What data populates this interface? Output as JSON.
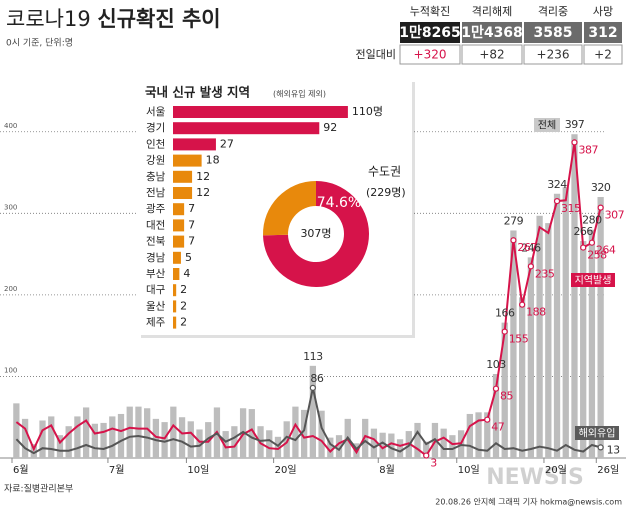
{
  "header": {
    "title_light": "코로나19",
    "title_bold": "신규확진 추이",
    "subtitle": "0시 기준, 단위:명"
  },
  "stats": {
    "headers": [
      "누적확진",
      "격리해제",
      "격리중",
      "사망"
    ],
    "values": [
      "1만8265",
      "1만4368",
      "3585",
      "312"
    ],
    "change_label": "전일대비",
    "changes": [
      "+320",
      "+82",
      "+236",
      "+2"
    ]
  },
  "chart_data": [
    {
      "type": "bar",
      "ylim": [
        0,
        450
      ],
      "yticks": [
        100,
        200,
        300,
        400
      ],
      "grid": true,
      "categories": [
        "6월",
        null,
        null,
        null,
        null,
        null,
        null,
        null,
        null,
        null,
        null,
        "7월",
        null,
        null,
        null,
        null,
        null,
        null,
        null,
        null,
        "10일",
        null,
        null,
        null,
        null,
        null,
        null,
        null,
        null,
        null,
        "20일",
        null,
        null,
        null,
        null,
        null,
        null,
        null,
        null,
        null,
        null,
        null,
        "8월",
        null,
        null,
        null,
        null,
        null,
        null,
        null,
        null,
        "10일",
        null,
        null,
        null,
        null,
        null,
        null,
        null,
        null,
        null,
        "20일",
        null,
        null,
        null,
        null,
        null,
        "26일"
      ],
      "series": [
        {
          "name": "전체",
          "type": "bar",
          "color": "#bdbdbd",
          "label_color": "#333333",
          "values": [
            67,
            48,
            17,
            46,
            51,
            28,
            39,
            51,
            62,
            42,
            43,
            51,
            54,
            63,
            63,
            61,
            48,
            44,
            63,
            50,
            45,
            35,
            44,
            62,
            33,
            39,
            61,
            60,
            39,
            34,
            26,
            45,
            63,
            59,
            113,
            58,
            25,
            28,
            48,
            18,
            48,
            36,
            31,
            30,
            23,
            33,
            43,
            20,
            43,
            36,
            28,
            34,
            54,
            56,
            56,
            103,
            166,
            279,
            197,
            246,
            297,
            288,
            324,
            332,
            397,
            266,
            280,
            320
          ],
          "value_labels": [
            null,
            null,
            null,
            null,
            null,
            null,
            null,
            null,
            null,
            null,
            null,
            null,
            null,
            null,
            null,
            null,
            null,
            null,
            null,
            null,
            null,
            null,
            null,
            null,
            null,
            null,
            null,
            null,
            null,
            null,
            null,
            null,
            null,
            null,
            "113",
            null,
            null,
            null,
            null,
            null,
            null,
            null,
            null,
            null,
            null,
            null,
            null,
            null,
            null,
            null,
            null,
            null,
            null,
            null,
            null,
            "103",
            "166",
            "279",
            null,
            "246",
            null,
            null,
            "324",
            null,
            "397",
            "266",
            "280",
            "320"
          ]
        },
        {
          "name": "지역발생",
          "type": "line",
          "color": "#d6134a",
          "label_color": "#d6134a",
          "values": [
            44,
            36,
            11,
            34,
            40,
            19,
            30,
            39,
            46,
            30,
            32,
            36,
            33,
            37,
            36,
            36,
            26,
            24,
            40,
            30,
            31,
            20,
            20,
            32,
            13,
            14,
            29,
            35,
            18,
            12,
            11,
            19,
            41,
            25,
            27,
            21,
            8,
            18,
            23,
            7,
            27,
            23,
            12,
            18,
            15,
            18,
            11,
            3,
            20,
            25,
            17,
            18,
            39,
            46,
            47,
            85,
            155,
            267,
            188,
            235,
            283,
            276,
            315,
            316,
            387,
            258,
            264,
            307
          ],
          "value_labels": [
            null,
            null,
            null,
            null,
            null,
            null,
            null,
            null,
            null,
            null,
            null,
            null,
            null,
            null,
            null,
            null,
            null,
            null,
            null,
            null,
            null,
            null,
            null,
            null,
            null,
            null,
            null,
            null,
            null,
            null,
            null,
            null,
            null,
            null,
            null,
            null,
            null,
            null,
            null,
            null,
            null,
            null,
            null,
            null,
            null,
            null,
            null,
            "3",
            null,
            null,
            null,
            null,
            null,
            null,
            "47",
            "85",
            "155",
            "267",
            "188",
            "235",
            null,
            null,
            "315",
            null,
            "387",
            "258",
            "264",
            "307"
          ]
        },
        {
          "name": "해외유입",
          "type": "line",
          "color": "#555555",
          "label_color": "#333333",
          "values": [
            23,
            12,
            6,
            12,
            11,
            9,
            9,
            12,
            16,
            12,
            11,
            15,
            21,
            26,
            27,
            25,
            22,
            20,
            23,
            20,
            14,
            15,
            24,
            30,
            20,
            25,
            32,
            25,
            21,
            22,
            15,
            26,
            22,
            34,
            86,
            37,
            17,
            10,
            25,
            11,
            21,
            13,
            19,
            12,
            8,
            15,
            32,
            17,
            23,
            11,
            11,
            16,
            15,
            10,
            9,
            18,
            11,
            12,
            9,
            11,
            14,
            12,
            9,
            16,
            10,
            8,
            16,
            13
          ],
          "value_labels": [
            null,
            null,
            null,
            null,
            null,
            null,
            null,
            null,
            null,
            null,
            null,
            null,
            null,
            null,
            null,
            null,
            null,
            null,
            null,
            null,
            null,
            null,
            null,
            null,
            null,
            null,
            null,
            null,
            null,
            null,
            null,
            null,
            null,
            null,
            "86",
            null,
            null,
            null,
            null,
            null,
            null,
            null,
            null,
            null,
            null,
            null,
            null,
            null,
            null,
            null,
            null,
            null,
            null,
            null,
            null,
            null,
            null,
            null,
            null,
            null,
            null,
            null,
            null,
            null,
            null,
            null,
            null,
            "13"
          ]
        }
      ]
    },
    {
      "type": "hbar",
      "title": "국내 신규 발생 지역",
      "subtitle": "(해외유입 제외)",
      "categories": [
        "서울",
        "경기",
        "인천",
        "강원",
        "충남",
        "전남",
        "광주",
        "대전",
        "전북",
        "경남",
        "부산",
        "대구",
        "울산",
        "제주"
      ],
      "values": [
        110,
        92,
        27,
        18,
        12,
        12,
        7,
        7,
        7,
        5,
        4,
        2,
        2,
        2
      ],
      "value_labels": [
        "110명",
        null,
        null,
        null,
        null,
        null,
        null,
        null,
        null,
        null,
        null,
        null,
        null,
        null
      ],
      "colors": [
        "#d6134a",
        "#d6134a",
        "#d6134a",
        "#e8890c",
        "#e8890c",
        "#e8890c",
        "#e8890c",
        "#e8890c",
        "#e8890c",
        "#e8890c",
        "#e8890c",
        "#e8890c",
        "#e8890c",
        "#e8890c"
      ]
    },
    {
      "type": "pie",
      "categories": [
        "수도권",
        null
      ],
      "values": [
        74.6,
        25.4
      ],
      "value_labels": [
        "74.6%",
        null
      ],
      "colors": [
        "#d6134a",
        "#e8890c"
      ],
      "annotation": "(229명)",
      "center_label": "307명"
    }
  ],
  "footer": {
    "source": "자료:질병관리본부",
    "credit": "20.08.26 안지혜 그래픽 기자 hokma@newsis.com",
    "logo": "NEWSIS"
  }
}
